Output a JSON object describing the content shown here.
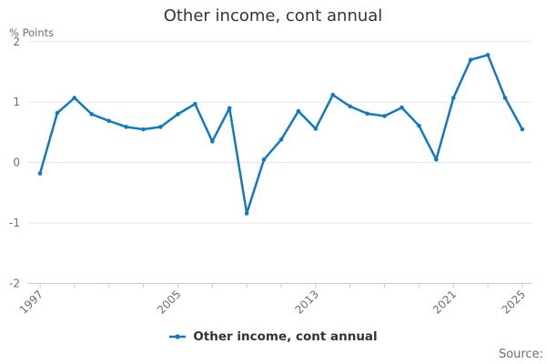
{
  "page": {
    "source_label": "Source:"
  },
  "chart_data": {
    "type": "line",
    "title": "Other income, cont annual",
    "unit_label": "% Points",
    "x": [
      1997,
      1998,
      1999,
      2000,
      2001,
      2002,
      2003,
      2004,
      2005,
      2006,
      2007,
      2008,
      2009,
      2010,
      2011,
      2012,
      2013,
      2014,
      2015,
      2016,
      2017,
      2018,
      2019,
      2020,
      2021,
      2022,
      2023,
      2024,
      2025
    ],
    "series": [
      {
        "name": "Other income, cont annual",
        "color": "#1379bd",
        "values": [
          -0.18,
          0.82,
          1.07,
          0.8,
          0.69,
          0.59,
          0.55,
          0.59,
          0.8,
          0.97,
          0.35,
          0.9,
          -0.84,
          0.05,
          0.38,
          0.85,
          0.56,
          1.12,
          0.93,
          0.81,
          0.77,
          0.91,
          0.61,
          0.05,
          1.07,
          1.7,
          1.78,
          1.07,
          0.55
        ]
      }
    ],
    "ylim": [
      -2,
      2
    ],
    "yticks": [
      "2",
      "1",
      "0",
      "-1",
      "-2"
    ],
    "ytick_values": [
      2,
      1,
      0,
      -1,
      -2
    ],
    "xtick_labels": [
      "1997",
      "2005",
      "2013",
      "2021",
      "2025"
    ],
    "xtick_values": [
      1997,
      2005,
      2013,
      2021,
      2025
    ],
    "minor_tick_interval": 2,
    "grid": "horizontal",
    "legend_position": "bottom",
    "grid_color": "#e6e6e6",
    "axis_color": "#c7ccd6",
    "label_color": "#6e6e6e"
  }
}
